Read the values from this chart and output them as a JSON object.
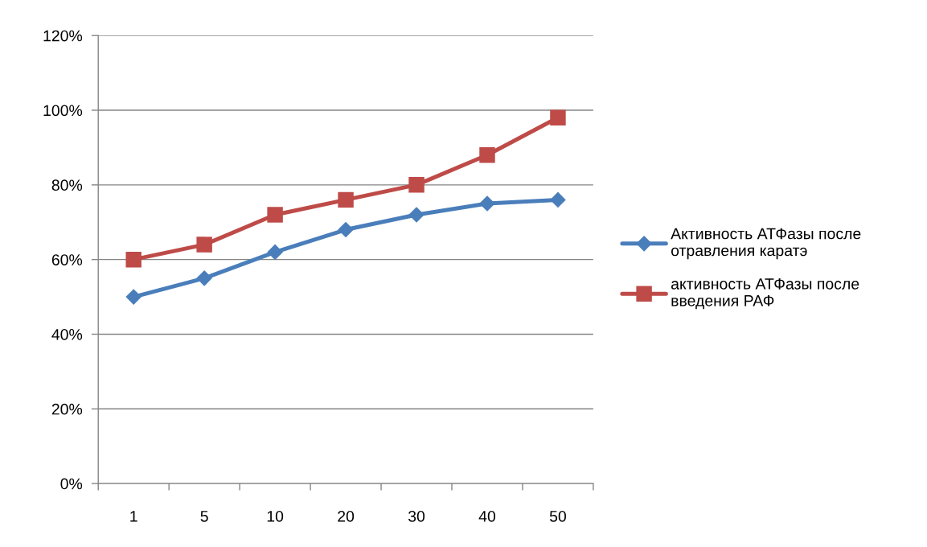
{
  "chart_data": {
    "type": "line",
    "categories": [
      "1",
      "5",
      "10",
      "20",
      "30",
      "40",
      "50"
    ],
    "series": [
      {
        "name": "Активность АТФазы после\nотравления каратэ",
        "color": "#4a7ebb",
        "marker": "diamond",
        "values": [
          50,
          55,
          62,
          68,
          72,
          75,
          76
        ]
      },
      {
        "name": "активность АТФазы после\nвведения РАФ",
        "color": "#be4b48",
        "marker": "square",
        "values": [
          60,
          64,
          72,
          76,
          80,
          88,
          98
        ]
      }
    ],
    "ylim": [
      0,
      120
    ],
    "yticks": [
      {
        "value": 0,
        "label": "0%"
      },
      {
        "value": 20,
        "label": "20%"
      },
      {
        "value": 40,
        "label": "40%"
      },
      {
        "value": 60,
        "label": "60%"
      },
      {
        "value": 80,
        "label": "80%"
      },
      {
        "value": 100,
        "label": "100%"
      },
      {
        "value": 120,
        "label": "120%"
      }
    ],
    "grid": "y",
    "legend": "right",
    "line_style": "solid"
  }
}
